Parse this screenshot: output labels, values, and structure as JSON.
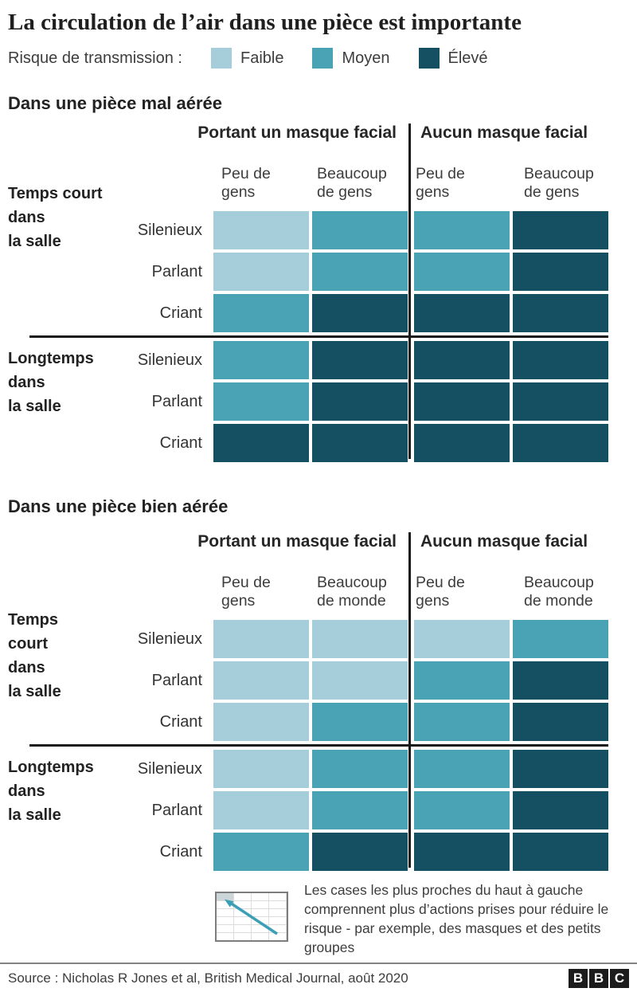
{
  "title": "La circulation de l’air dans une pièce est importante",
  "legend": {
    "label": "Risque de transmission :",
    "items": [
      {
        "label": "Faible",
        "color": "#a5cdda"
      },
      {
        "label": "Moyen",
        "color": "#4aa2b5"
      },
      {
        "label": "Élevé",
        "color": "#144f62"
      }
    ]
  },
  "risk_colors": {
    "faible": "#a5cdda",
    "moyen": "#4aa2b5",
    "eleve": "#144f62"
  },
  "sections": [
    {
      "heading": "Dans une pièce mal aérée",
      "group_headers": [
        "Portant un masque facial",
        "Aucun masque facial"
      ],
      "col_headers": [
        "Peu de\ngens",
        "Beaucoup\nde gens",
        "Peu de\ngens",
        "Beaucoup\nde gens"
      ],
      "row_groups": [
        {
          "label": "Temps court\ndans\nla salle",
          "rows": [
            {
              "label": "Silenieux",
              "cells": [
                "faible",
                "moyen",
                "moyen",
                "eleve"
              ]
            },
            {
              "label": "Parlant",
              "cells": [
                "faible",
                "moyen",
                "moyen",
                "eleve"
              ]
            },
            {
              "label": "Criant",
              "cells": [
                "moyen",
                "eleve",
                "eleve",
                "eleve"
              ]
            }
          ]
        },
        {
          "label": "Longtemps\ndans\nla salle",
          "rows": [
            {
              "label": "Silenieux",
              "cells": [
                "moyen",
                "eleve",
                "eleve",
                "eleve"
              ]
            },
            {
              "label": "Parlant",
              "cells": [
                "moyen",
                "eleve",
                "eleve",
                "eleve"
              ]
            },
            {
              "label": "Criant",
              "cells": [
                "eleve",
                "eleve",
                "eleve",
                "eleve"
              ]
            }
          ]
        }
      ]
    },
    {
      "heading": "Dans une pièce bien aérée",
      "group_headers": [
        "Portant un masque facial",
        "Aucun masque facial"
      ],
      "col_headers": [
        "Peu de\ngens",
        "Beaucoup\nde monde",
        "Peu de\ngens",
        "Beaucoup\nde monde"
      ],
      "row_groups": [
        {
          "label": "Temps\ncourt\ndans\nla salle",
          "rows": [
            {
              "label": "Silenieux",
              "cells": [
                "faible",
                "faible",
                "faible",
                "moyen"
              ]
            },
            {
              "label": "Parlant",
              "cells": [
                "faible",
                "faible",
                "moyen",
                "eleve"
              ]
            },
            {
              "label": "Criant",
              "cells": [
                "faible",
                "moyen",
                "moyen",
                "eleve"
              ]
            }
          ]
        },
        {
          "label": "Longtemps\ndans\nla salle",
          "rows": [
            {
              "label": "Silenieux",
              "cells": [
                "faible",
                "moyen",
                "moyen",
                "eleve"
              ]
            },
            {
              "label": "Parlant",
              "cells": [
                "faible",
                "moyen",
                "moyen",
                "eleve"
              ]
            },
            {
              "label": "Criant",
              "cells": [
                "moyen",
                "eleve",
                "eleve",
                "eleve"
              ]
            }
          ]
        }
      ]
    }
  ],
  "annotation": {
    "icon": "grid-arrow-top-left-icon",
    "text": "Les cases les plus proches du haut à gauche comprennent plus d’actions prises pour réduire le risque - par exemple, des masques et des petits groupes"
  },
  "footer": {
    "source": "Source : Nicholas R Jones et al, British Medical Journal, août 2020",
    "logo_letters": [
      "B",
      "B",
      "C"
    ]
  },
  "chart_data": [
    {
      "type": "heatmap",
      "title": "Dans une pièce mal aérée",
      "legend_title": "Risque de transmission",
      "levels": [
        "Faible",
        "Moyen",
        "Élevé"
      ],
      "level_colors": {
        "Faible": "#a5cdda",
        "Moyen": "#4aa2b5",
        "Élevé": "#144f62"
      },
      "columns": [
        "Portant un masque facial - Peu de gens",
        "Portant un masque facial - Beaucoup de gens",
        "Aucun masque facial - Peu de gens",
        "Aucun masque facial - Beaucoup de gens"
      ],
      "rows": [
        "Temps court dans la salle - Silenieux",
        "Temps court dans la salle - Parlant",
        "Temps court dans la salle - Criant",
        "Longtemps dans la salle - Silenieux",
        "Longtemps dans la salle - Parlant",
        "Longtemps dans la salle - Criant"
      ],
      "values": [
        [
          "Faible",
          "Moyen",
          "Moyen",
          "Élevé"
        ],
        [
          "Faible",
          "Moyen",
          "Moyen",
          "Élevé"
        ],
        [
          "Moyen",
          "Élevé",
          "Élevé",
          "Élevé"
        ],
        [
          "Moyen",
          "Élevé",
          "Élevé",
          "Élevé"
        ],
        [
          "Moyen",
          "Élevé",
          "Élevé",
          "Élevé"
        ],
        [
          "Élevé",
          "Élevé",
          "Élevé",
          "Élevé"
        ]
      ]
    },
    {
      "type": "heatmap",
      "title": "Dans une pièce bien aérée",
      "legend_title": "Risque de transmission",
      "levels": [
        "Faible",
        "Moyen",
        "Élevé"
      ],
      "level_colors": {
        "Faible": "#a5cdda",
        "Moyen": "#4aa2b5",
        "Élevé": "#144f62"
      },
      "columns": [
        "Portant un masque facial - Peu de gens",
        "Portant un masque facial - Beaucoup de monde",
        "Aucun masque facial - Peu de gens",
        "Aucun masque facial - Beaucoup de monde"
      ],
      "rows": [
        "Temps court dans la salle - Silenieux",
        "Temps court dans la salle - Parlant",
        "Temps court dans la salle - Criant",
        "Longtemps dans la salle - Silenieux",
        "Longtemps dans la salle - Parlant",
        "Longtemps dans la salle - Criant"
      ],
      "values": [
        [
          "Faible",
          "Faible",
          "Faible",
          "Moyen"
        ],
        [
          "Faible",
          "Faible",
          "Moyen",
          "Élevé"
        ],
        [
          "Faible",
          "Moyen",
          "Moyen",
          "Élevé"
        ],
        [
          "Faible",
          "Moyen",
          "Moyen",
          "Élevé"
        ],
        [
          "Faible",
          "Moyen",
          "Moyen",
          "Élevé"
        ],
        [
          "Moyen",
          "Élevé",
          "Élevé",
          "Élevé"
        ]
      ]
    }
  ]
}
